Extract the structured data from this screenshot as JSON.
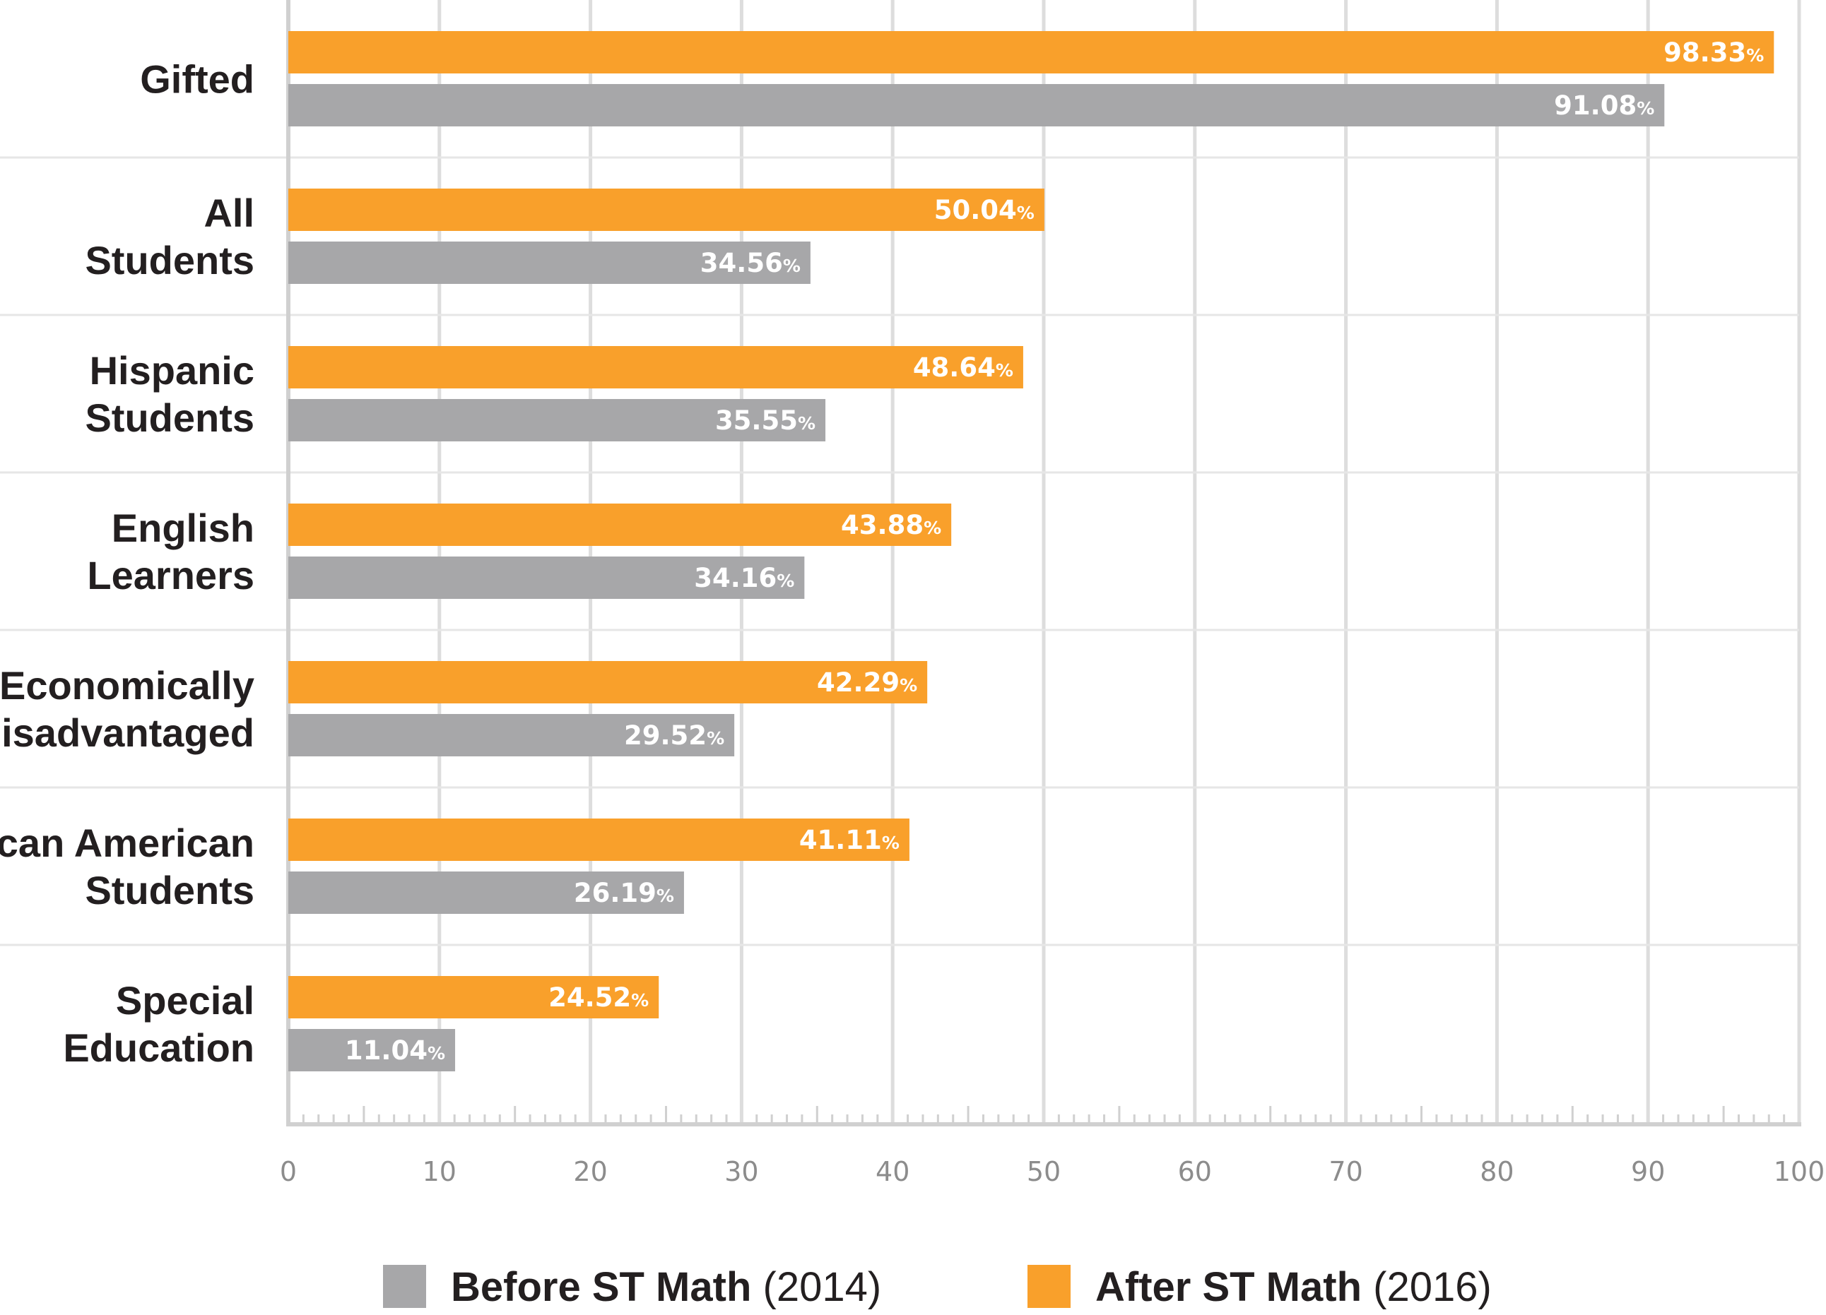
{
  "colors": {
    "before": "#a7a7a9",
    "after": "#f9a02b",
    "grid": "#dddddd",
    "axis": "#d0d0d0",
    "text": "#231f20",
    "tick_text": "#8c8c8c"
  },
  "chart_data": {
    "type": "bar",
    "orientation": "horizontal",
    "categories": [
      [
        "Gifted"
      ],
      [
        "All",
        "Students"
      ],
      [
        "Hispanic",
        "Students"
      ],
      [
        "English",
        "Learners"
      ],
      [
        "Economically",
        "Disadvantaged"
      ],
      [
        "African American",
        "Students"
      ],
      [
        "Special",
        "Education"
      ]
    ],
    "series": [
      {
        "key": "after",
        "values": [
          98.33,
          50.04,
          48.64,
          43.88,
          42.29,
          41.11,
          24.52
        ]
      },
      {
        "key": "before",
        "values": [
          91.08,
          34.56,
          35.55,
          34.16,
          29.52,
          26.19,
          11.04
        ]
      }
    ],
    "value_suffix": "%",
    "xlim": [
      0,
      100
    ],
    "x_ticks": [
      "0",
      "10",
      "20",
      "30",
      "40",
      "50",
      "60",
      "70",
      "80",
      "90",
      "100"
    ],
    "grid": true,
    "legend_position": "bottom",
    "legend": [
      {
        "key": "before",
        "label": "Before ST Math",
        "year": "(2014)"
      },
      {
        "key": "after",
        "label": "After ST Math",
        "year": "(2016)"
      }
    ]
  }
}
